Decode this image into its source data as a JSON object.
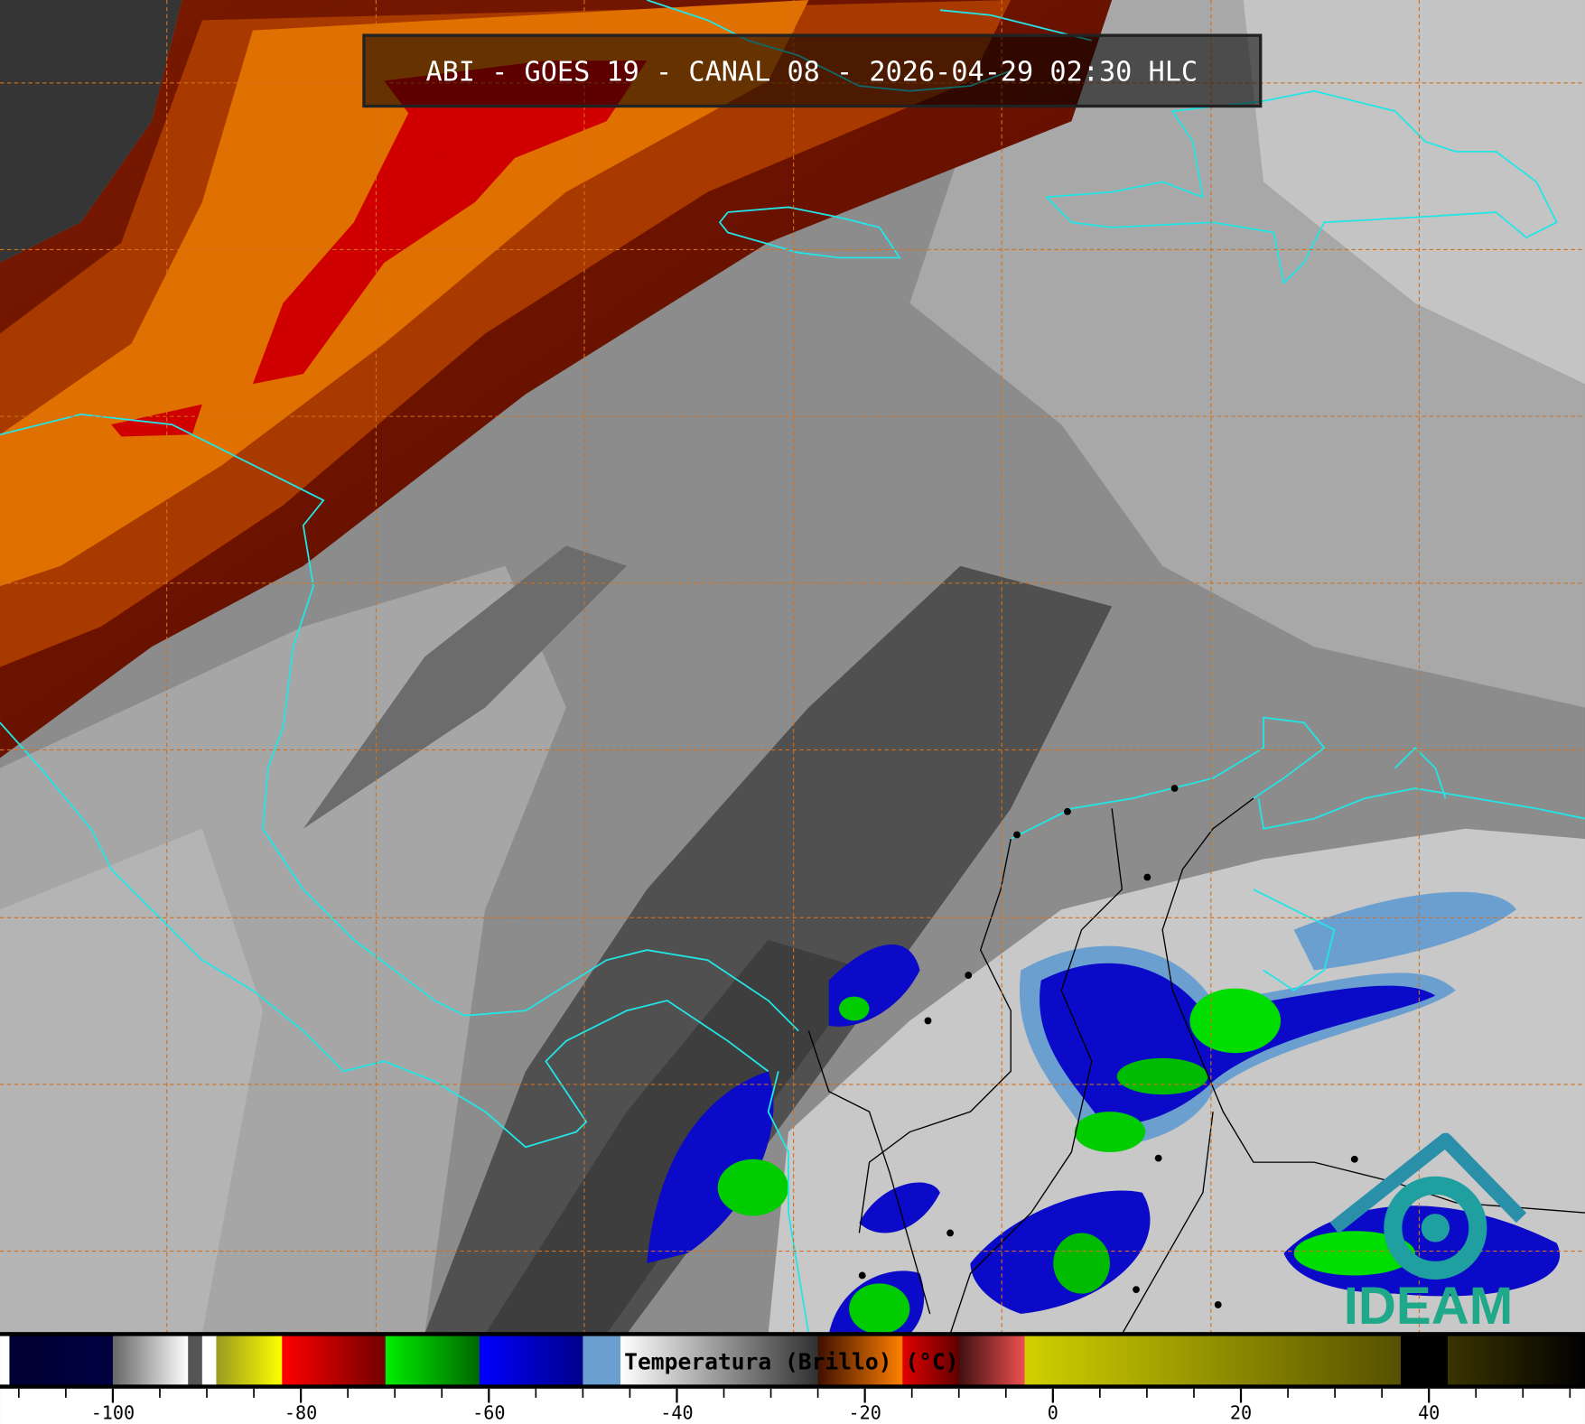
{
  "title": "ABI - GOES 19 - CANAL 08 - 2026-04-29 02:30 HLC",
  "logo": {
    "text": "IDEAM",
    "color": "#1fa88a",
    "accent": "#2a8fa8"
  },
  "colors": {
    "coastline": "#22e6e6",
    "borders": "#000000",
    "graticule": "#d07020"
  },
  "colorbar": {
    "label": "Temperatura (Brillo) (°C)",
    "range": [
      -112,
      56.6
    ],
    "major_ticks": [
      -100,
      -80,
      -60,
      -40,
      -20,
      0,
      20,
      40
    ],
    "tick_labels": [
      "-100",
      "-80",
      "-60",
      "-40",
      "-20",
      "0",
      "20",
      "40"
    ],
    "minor_step": 5,
    "segments": [
      [
        -112,
        -111,
        "#ffffff",
        "#ffffff"
      ],
      [
        -111,
        -100,
        "#000033",
        "#000040"
      ],
      [
        -100,
        -92,
        "#666666",
        "#ffffff"
      ],
      [
        -92,
        -90.5,
        "#555555",
        "#555555"
      ],
      [
        -90.5,
        -89,
        "#ffffff",
        "#ffffff"
      ],
      [
        -89,
        -82,
        "#9a9a20",
        "#ffff00"
      ],
      [
        -82,
        -71,
        "#ff0000",
        "#700000"
      ],
      [
        -71,
        -61,
        "#00ee00",
        "#006600"
      ],
      [
        -61,
        -50,
        "#0000ff",
        "#000088"
      ],
      [
        -50,
        -46,
        "#6a9fd0",
        "#6a9fd0"
      ],
      [
        -46,
        -25,
        "#ffffff",
        "#303030"
      ],
      [
        -25,
        -16,
        "#401000",
        "#ff8000"
      ],
      [
        -16,
        -10,
        "#e00000",
        "#600000"
      ],
      [
        -10,
        -3,
        "#401010",
        "#ee5050"
      ],
      [
        -3,
        37,
        "#d0d000",
        "#555000"
      ],
      [
        37,
        42,
        "#000000",
        "#000000"
      ],
      [
        42,
        56.6,
        "#3a3400",
        "#000000"
      ]
    ]
  }
}
